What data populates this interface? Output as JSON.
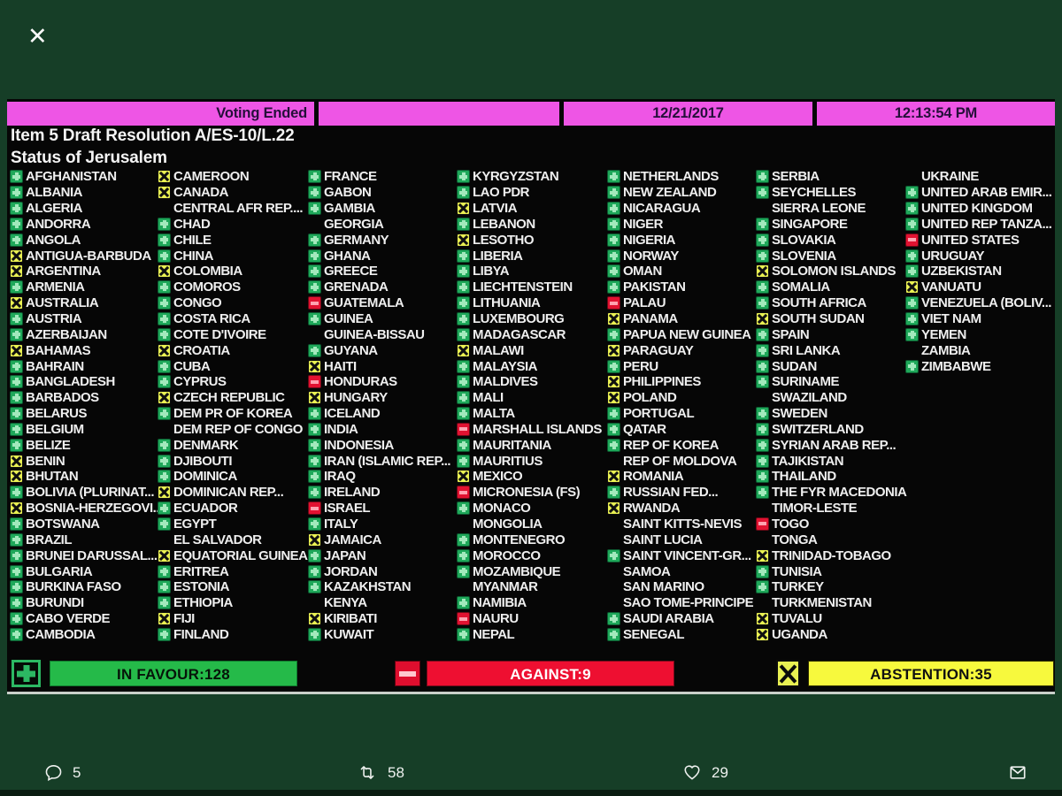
{
  "overlay": {
    "close": "✕"
  },
  "header": {
    "status": "Voting Ended",
    "date": "12/21/2017",
    "time": "12:13:54 PM"
  },
  "title": {
    "line1": "Item 5 Draft Resolution A/ES-10/L.22",
    "line2": "Status of Jerusalem"
  },
  "legend": {
    "in_favour": "IN FAVOUR:128",
    "against": "AGAINST:9",
    "abstention": "ABSTENTION:35"
  },
  "actions": {
    "replies": "5",
    "retweets": "58",
    "likes": "29"
  },
  "colors": {
    "background": "#163e27",
    "board": "#060606",
    "magenta_bar": "#ee55e5",
    "favour_green": "#1fa85a",
    "against_red": "#e11231",
    "abstain_yellow": "#e9f052",
    "legend_green_bar": "#25ba49",
    "legend_red_bar": "#ee0f31",
    "legend_yellow_bar": "#f7f93d"
  },
  "board": {
    "columns": [
      [
        {
          "name": "AFGHANISTAN",
          "vote": "favour"
        },
        {
          "name": "ALBANIA",
          "vote": "favour"
        },
        {
          "name": "ALGERIA",
          "vote": "favour"
        },
        {
          "name": "ANDORRA",
          "vote": "favour"
        },
        {
          "name": "ANGOLA",
          "vote": "favour"
        },
        {
          "name": "ANTIGUA-BARBUDA",
          "vote": "abstain"
        },
        {
          "name": "ARGENTINA",
          "vote": "abstain"
        },
        {
          "name": "ARMENIA",
          "vote": "favour"
        },
        {
          "name": "AUSTRALIA",
          "vote": "abstain"
        },
        {
          "name": "AUSTRIA",
          "vote": "favour"
        },
        {
          "name": "AZERBAIJAN",
          "vote": "favour"
        },
        {
          "name": "BAHAMAS",
          "vote": "abstain"
        },
        {
          "name": "BAHRAIN",
          "vote": "favour"
        },
        {
          "name": "BANGLADESH",
          "vote": "favour"
        },
        {
          "name": "BARBADOS",
          "vote": "favour"
        },
        {
          "name": "BELARUS",
          "vote": "favour"
        },
        {
          "name": "BELGIUM",
          "vote": "favour"
        },
        {
          "name": "BELIZE",
          "vote": "favour"
        },
        {
          "name": "BENIN",
          "vote": "abstain"
        },
        {
          "name": "BHUTAN",
          "vote": "abstain"
        },
        {
          "name": "BOLIVIA (PLURINAT...",
          "vote": "favour"
        },
        {
          "name": "BOSNIA-HERZEGOVI...",
          "vote": "abstain"
        },
        {
          "name": "BOTSWANA",
          "vote": "favour"
        },
        {
          "name": "BRAZIL",
          "vote": "favour"
        },
        {
          "name": "BRUNEI DARUSSAL...",
          "vote": "favour"
        },
        {
          "name": "BULGARIA",
          "vote": "favour"
        },
        {
          "name": "BURKINA FASO",
          "vote": "favour"
        },
        {
          "name": "BURUNDI",
          "vote": "favour"
        },
        {
          "name": "CABO VERDE",
          "vote": "favour"
        },
        {
          "name": "CAMBODIA",
          "vote": "favour"
        }
      ],
      [
        {
          "name": "CAMEROON",
          "vote": "abstain"
        },
        {
          "name": "CANADA",
          "vote": "abstain"
        },
        {
          "name": "CENTRAL AFR REP....",
          "vote": "none"
        },
        {
          "name": "CHAD",
          "vote": "favour"
        },
        {
          "name": "CHILE",
          "vote": "favour"
        },
        {
          "name": "CHINA",
          "vote": "favour"
        },
        {
          "name": "COLOMBIA",
          "vote": "abstain"
        },
        {
          "name": "COMOROS",
          "vote": "favour"
        },
        {
          "name": "CONGO",
          "vote": "favour"
        },
        {
          "name": "COSTA RICA",
          "vote": "favour"
        },
        {
          "name": "COTE D'IVOIRE",
          "vote": "favour"
        },
        {
          "name": "CROATIA",
          "vote": "abstain"
        },
        {
          "name": "CUBA",
          "vote": "favour"
        },
        {
          "name": "CYPRUS",
          "vote": "favour"
        },
        {
          "name": "CZECH REPUBLIC",
          "vote": "abstain"
        },
        {
          "name": "DEM PR OF KOREA",
          "vote": "favour"
        },
        {
          "name": "DEM REP OF CONGO",
          "vote": "none"
        },
        {
          "name": "DENMARK",
          "vote": "favour"
        },
        {
          "name": "DJIBOUTI",
          "vote": "favour"
        },
        {
          "name": "DOMINICA",
          "vote": "favour"
        },
        {
          "name": "DOMINICAN REP...",
          "vote": "abstain"
        },
        {
          "name": "ECUADOR",
          "vote": "favour"
        },
        {
          "name": "EGYPT",
          "vote": "favour"
        },
        {
          "name": "EL SALVADOR",
          "vote": "none"
        },
        {
          "name": "EQUATORIAL GUINEA",
          "vote": "abstain"
        },
        {
          "name": "ERITREA",
          "vote": "favour"
        },
        {
          "name": "ESTONIA",
          "vote": "favour"
        },
        {
          "name": "ETHIOPIA",
          "vote": "favour"
        },
        {
          "name": "FIJI",
          "vote": "abstain"
        },
        {
          "name": "FINLAND",
          "vote": "favour"
        }
      ],
      [
        {
          "name": "FRANCE",
          "vote": "favour"
        },
        {
          "name": "GABON",
          "vote": "favour"
        },
        {
          "name": "GAMBIA",
          "vote": "favour"
        },
        {
          "name": "GEORGIA",
          "vote": "none"
        },
        {
          "name": "GERMANY",
          "vote": "favour"
        },
        {
          "name": "GHANA",
          "vote": "favour"
        },
        {
          "name": "GREECE",
          "vote": "favour"
        },
        {
          "name": "GRENADA",
          "vote": "favour"
        },
        {
          "name": "GUATEMALA",
          "vote": "against"
        },
        {
          "name": "GUINEA",
          "vote": "favour"
        },
        {
          "name": "GUINEA-BISSAU",
          "vote": "none"
        },
        {
          "name": "GUYANA",
          "vote": "favour"
        },
        {
          "name": "HAITI",
          "vote": "abstain"
        },
        {
          "name": "HONDURAS",
          "vote": "against"
        },
        {
          "name": "HUNGARY",
          "vote": "abstain"
        },
        {
          "name": "ICELAND",
          "vote": "favour"
        },
        {
          "name": "INDIA",
          "vote": "favour"
        },
        {
          "name": "INDONESIA",
          "vote": "favour"
        },
        {
          "name": "IRAN (ISLAMIC REP...",
          "vote": "favour"
        },
        {
          "name": "IRAQ",
          "vote": "favour"
        },
        {
          "name": "IRELAND",
          "vote": "favour"
        },
        {
          "name": "ISRAEL",
          "vote": "against"
        },
        {
          "name": "ITALY",
          "vote": "favour"
        },
        {
          "name": "JAMAICA",
          "vote": "abstain"
        },
        {
          "name": "JAPAN",
          "vote": "favour"
        },
        {
          "name": "JORDAN",
          "vote": "favour"
        },
        {
          "name": "KAZAKHSTAN",
          "vote": "favour"
        },
        {
          "name": "KENYA",
          "vote": "none"
        },
        {
          "name": "KIRIBATI",
          "vote": "abstain"
        },
        {
          "name": "KUWAIT",
          "vote": "favour"
        }
      ],
      [
        {
          "name": "KYRGYZSTAN",
          "vote": "favour"
        },
        {
          "name": "LAO PDR",
          "vote": "favour"
        },
        {
          "name": "LATVIA",
          "vote": "abstain"
        },
        {
          "name": "LEBANON",
          "vote": "favour"
        },
        {
          "name": "LESOTHO",
          "vote": "abstain"
        },
        {
          "name": "LIBERIA",
          "vote": "favour"
        },
        {
          "name": "LIBYA",
          "vote": "favour"
        },
        {
          "name": "LIECHTENSTEIN",
          "vote": "favour"
        },
        {
          "name": "LITHUANIA",
          "vote": "favour"
        },
        {
          "name": "LUXEMBOURG",
          "vote": "favour"
        },
        {
          "name": "MADAGASCAR",
          "vote": "favour"
        },
        {
          "name": "MALAWI",
          "vote": "abstain"
        },
        {
          "name": "MALAYSIA",
          "vote": "favour"
        },
        {
          "name": "MALDIVES",
          "vote": "favour"
        },
        {
          "name": "MALI",
          "vote": "favour"
        },
        {
          "name": "MALTA",
          "vote": "favour"
        },
        {
          "name": "MARSHALL ISLANDS",
          "vote": "against"
        },
        {
          "name": "MAURITANIA",
          "vote": "favour"
        },
        {
          "name": "MAURITIUS",
          "vote": "favour"
        },
        {
          "name": "MEXICO",
          "vote": "abstain"
        },
        {
          "name": "MICRONESIA (FS)",
          "vote": "against"
        },
        {
          "name": "MONACO",
          "vote": "favour"
        },
        {
          "name": "MONGOLIA",
          "vote": "none"
        },
        {
          "name": "MONTENEGRO",
          "vote": "favour"
        },
        {
          "name": "MOROCCO",
          "vote": "favour"
        },
        {
          "name": "MOZAMBIQUE",
          "vote": "favour"
        },
        {
          "name": "MYANMAR",
          "vote": "none"
        },
        {
          "name": "NAMIBIA",
          "vote": "favour"
        },
        {
          "name": "NAURU",
          "vote": "against"
        },
        {
          "name": "NEPAL",
          "vote": "favour"
        }
      ],
      [
        {
          "name": "NETHERLANDS",
          "vote": "favour"
        },
        {
          "name": "NEW ZEALAND",
          "vote": "favour"
        },
        {
          "name": "NICARAGUA",
          "vote": "favour"
        },
        {
          "name": "NIGER",
          "vote": "favour"
        },
        {
          "name": "NIGERIA",
          "vote": "favour"
        },
        {
          "name": "NORWAY",
          "vote": "favour"
        },
        {
          "name": "OMAN",
          "vote": "favour"
        },
        {
          "name": "PAKISTAN",
          "vote": "favour"
        },
        {
          "name": "PALAU",
          "vote": "against"
        },
        {
          "name": "PANAMA",
          "vote": "abstain"
        },
        {
          "name": "PAPUA NEW GUINEA",
          "vote": "favour"
        },
        {
          "name": "PARAGUAY",
          "vote": "abstain"
        },
        {
          "name": "PERU",
          "vote": "favour"
        },
        {
          "name": "PHILIPPINES",
          "vote": "abstain"
        },
        {
          "name": "POLAND",
          "vote": "abstain"
        },
        {
          "name": "PORTUGAL",
          "vote": "favour"
        },
        {
          "name": "QATAR",
          "vote": "favour"
        },
        {
          "name": "REP OF KOREA",
          "vote": "favour"
        },
        {
          "name": "REP OF MOLDOVA",
          "vote": "none"
        },
        {
          "name": "ROMANIA",
          "vote": "abstain"
        },
        {
          "name": "RUSSIAN FED...",
          "vote": "favour"
        },
        {
          "name": "RWANDA",
          "vote": "abstain"
        },
        {
          "name": "SAINT KITTS-NEVIS",
          "vote": "none"
        },
        {
          "name": "SAINT LUCIA",
          "vote": "none"
        },
        {
          "name": "SAINT VINCENT-GR...",
          "vote": "favour"
        },
        {
          "name": "SAMOA",
          "vote": "none"
        },
        {
          "name": "SAN MARINO",
          "vote": "none"
        },
        {
          "name": "SAO TOME-PRINCIPE",
          "vote": "none"
        },
        {
          "name": "SAUDI ARABIA",
          "vote": "favour"
        },
        {
          "name": "SENEGAL",
          "vote": "favour"
        }
      ],
      [
        {
          "name": "SERBIA",
          "vote": "favour"
        },
        {
          "name": "SEYCHELLES",
          "vote": "favour"
        },
        {
          "name": "SIERRA LEONE",
          "vote": "none"
        },
        {
          "name": "SINGAPORE",
          "vote": "favour"
        },
        {
          "name": "SLOVAKIA",
          "vote": "favour"
        },
        {
          "name": "SLOVENIA",
          "vote": "favour"
        },
        {
          "name": "SOLOMON ISLANDS",
          "vote": "abstain"
        },
        {
          "name": "SOMALIA",
          "vote": "favour"
        },
        {
          "name": "SOUTH AFRICA",
          "vote": "favour"
        },
        {
          "name": "SOUTH SUDAN",
          "vote": "abstain"
        },
        {
          "name": "SPAIN",
          "vote": "favour"
        },
        {
          "name": "SRI LANKA",
          "vote": "favour"
        },
        {
          "name": "SUDAN",
          "vote": "favour"
        },
        {
          "name": "SURINAME",
          "vote": "favour"
        },
        {
          "name": "SWAZILAND",
          "vote": "none"
        },
        {
          "name": "SWEDEN",
          "vote": "favour"
        },
        {
          "name": "SWITZERLAND",
          "vote": "favour"
        },
        {
          "name": "SYRIAN ARAB REP...",
          "vote": "favour"
        },
        {
          "name": "TAJIKISTAN",
          "vote": "favour"
        },
        {
          "name": "THAILAND",
          "vote": "favour"
        },
        {
          "name": "THE FYR MACEDONIA",
          "vote": "favour"
        },
        {
          "name": "TIMOR-LESTE",
          "vote": "none"
        },
        {
          "name": "TOGO",
          "vote": "against"
        },
        {
          "name": "TONGA",
          "vote": "none"
        },
        {
          "name": "TRINIDAD-TOBAGO",
          "vote": "abstain"
        },
        {
          "name": "TUNISIA",
          "vote": "favour"
        },
        {
          "name": "TURKEY",
          "vote": "favour"
        },
        {
          "name": "TURKMENISTAN",
          "vote": "none"
        },
        {
          "name": "TUVALU",
          "vote": "abstain"
        },
        {
          "name": "UGANDA",
          "vote": "abstain"
        }
      ],
      [
        {
          "name": "UKRAINE",
          "vote": "none"
        },
        {
          "name": "UNITED ARAB EMIR...",
          "vote": "favour"
        },
        {
          "name": "UNITED KINGDOM",
          "vote": "favour"
        },
        {
          "name": "UNITED REP TANZA...",
          "vote": "favour"
        },
        {
          "name": "UNITED STATES",
          "vote": "against"
        },
        {
          "name": "URUGUAY",
          "vote": "favour"
        },
        {
          "name": "UZBEKISTAN",
          "vote": "favour"
        },
        {
          "name": "VANUATU",
          "vote": "abstain"
        },
        {
          "name": "VENEZUELA (BOLIV...",
          "vote": "favour"
        },
        {
          "name": "VIET NAM",
          "vote": "favour"
        },
        {
          "name": "YEMEN",
          "vote": "favour"
        },
        {
          "name": "ZAMBIA",
          "vote": "none"
        },
        {
          "name": "ZIMBABWE",
          "vote": "favour"
        }
      ]
    ]
  }
}
